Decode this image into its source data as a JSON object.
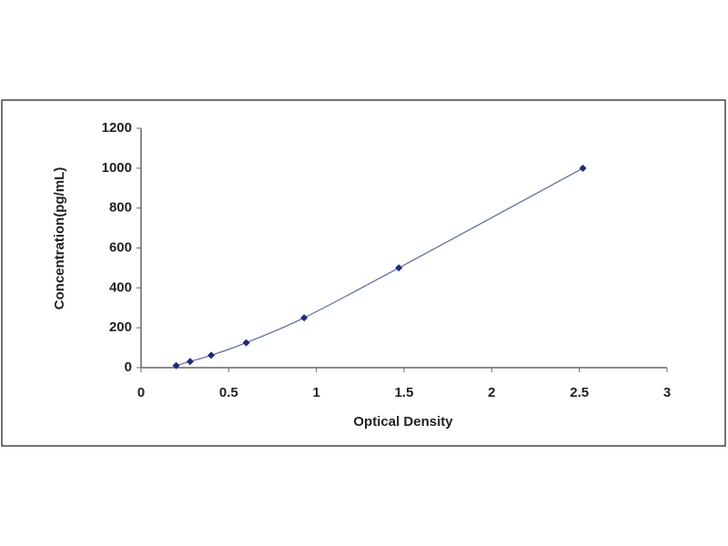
{
  "chart_data": {
    "type": "scatter",
    "x_label": "Optical Density",
    "y_label": "Concentration(pg/mL)",
    "series": [
      {
        "color": "#1f2a7a",
        "x": [
          0.2,
          0.28,
          0.4,
          0.6,
          0.93,
          1.47,
          2.52
        ],
        "values": [
          10,
          31,
          62,
          125,
          250,
          500,
          1000
        ]
      }
    ],
    "xlim": [
      0,
      3
    ],
    "xticks": [
      0,
      0.5,
      1,
      1.5,
      2,
      2.5,
      3
    ],
    "ylim": [
      0,
      1200
    ],
    "yticks": [
      0,
      200,
      400,
      600,
      800,
      1000,
      1200
    ],
    "grid": false,
    "fit_line": true
  }
}
